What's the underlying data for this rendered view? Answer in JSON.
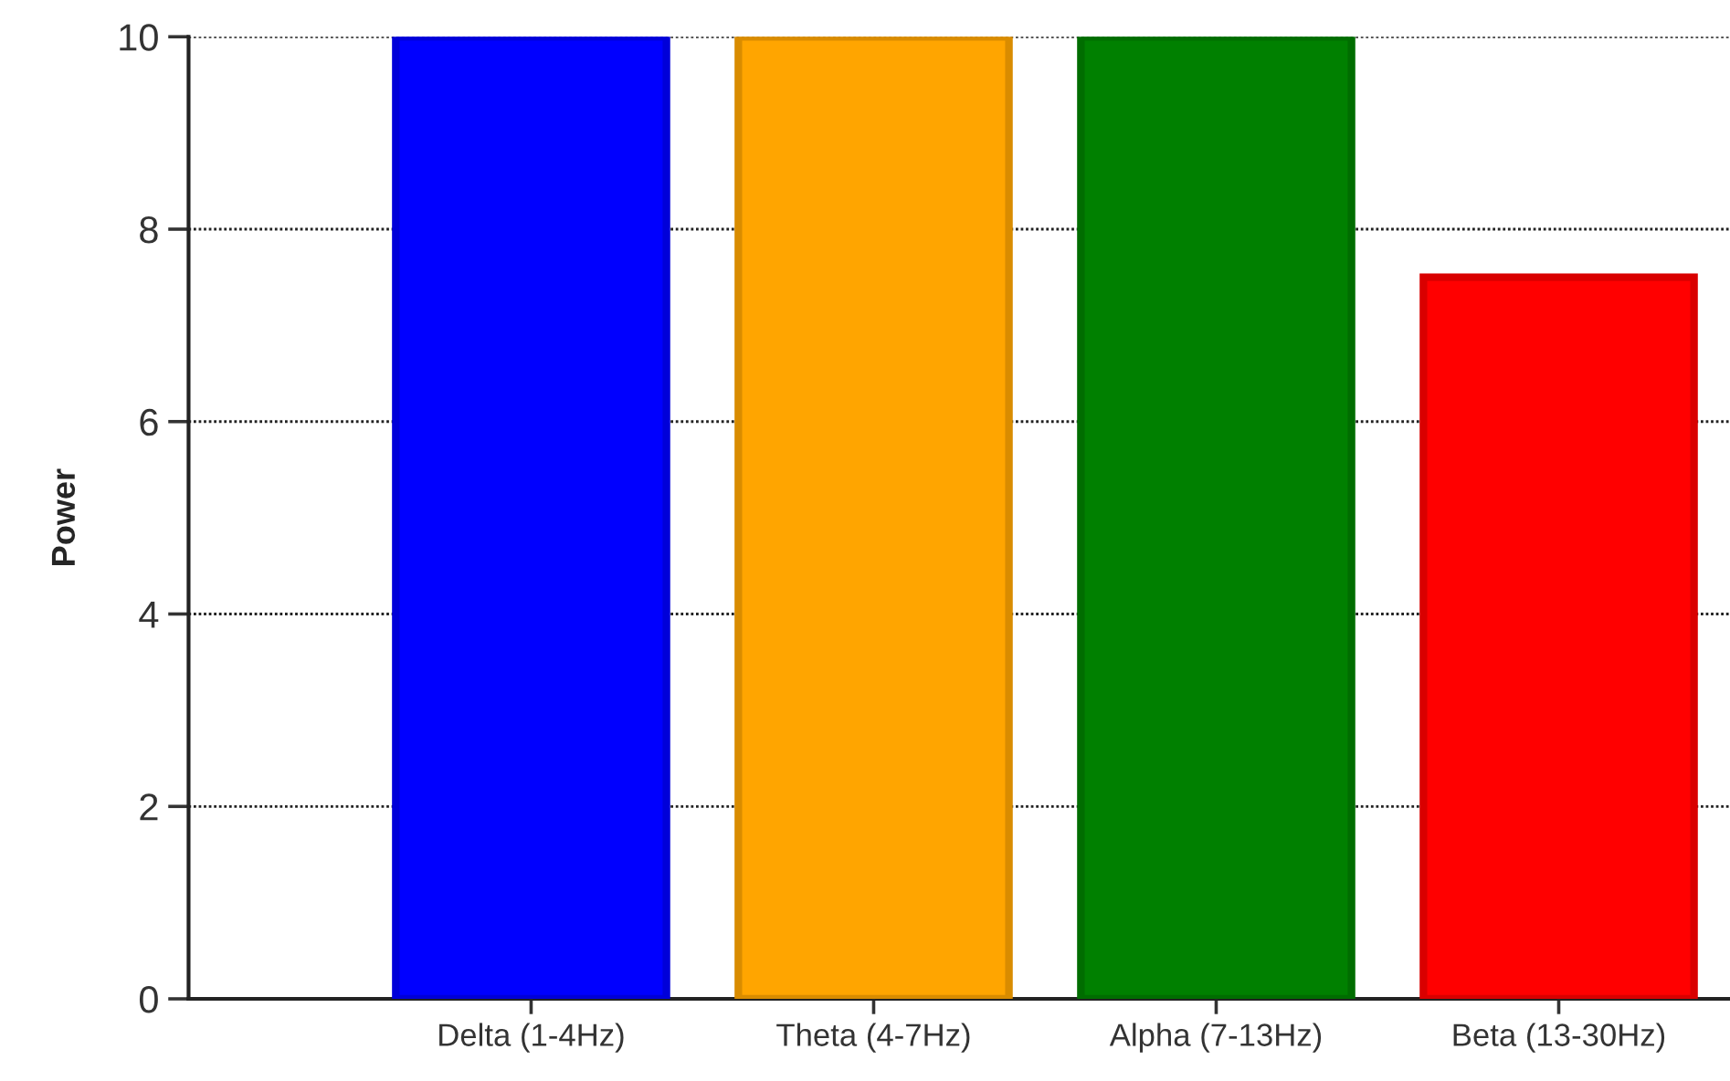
{
  "chart_data": {
    "type": "bar",
    "categories": [
      "Delta (1-4Hz)",
      "Theta (4-7Hz)",
      "Alpha (7-13Hz)",
      "Beta (13-30Hz)"
    ],
    "values": [
      10,
      10,
      10,
      7.5
    ],
    "colors": [
      "#0000ff",
      "#ffa500",
      "#008000",
      "#ff0000"
    ],
    "ylabel": "Power",
    "ylim": [
      0,
      10
    ],
    "yticks": [
      0,
      2,
      4,
      6,
      8,
      10
    ],
    "grid": "y"
  }
}
